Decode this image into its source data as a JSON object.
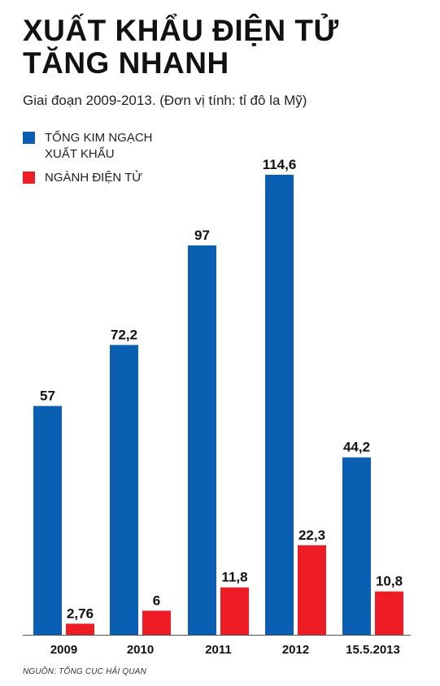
{
  "title_line1": "XUẤT KHẨU ĐIỆN TỬ",
  "title_line2": "TĂNG NHANH",
  "subtitle": "Giai đoạn 2009-2013. (Đơn vị tính: tỉ đô la Mỹ)",
  "source": "NGUỒN: TỔNG CỤC HẢI QUAN",
  "colors": {
    "blue": "#0a5fb2",
    "red": "#ee1c25"
  },
  "chart_data": {
    "type": "bar",
    "categories": [
      "2009",
      "2010",
      "2011",
      "2012",
      "15.5.2013"
    ],
    "series": [
      {
        "name": "TỔNG KIM NGẠCH XUẤT KHẨU",
        "legend_line1": "TỔNG KIM NGẠCH",
        "legend_line2": "XUẤT KHẨU",
        "values": [
          57,
          72.2,
          97,
          114.6,
          44.2
        ],
        "labels": [
          "57",
          "72,2",
          "97",
          "114,6",
          "44,2"
        ]
      },
      {
        "name": "NGÀNH ĐIỆN TỬ",
        "values": [
          2.76,
          6,
          11.8,
          22.3,
          10.8
        ],
        "labels": [
          "2,76",
          "6",
          "11,8",
          "22,3",
          "10,8"
        ]
      }
    ],
    "ylim": [
      0,
      114.6
    ],
    "grid": false,
    "legend": "top-left"
  }
}
